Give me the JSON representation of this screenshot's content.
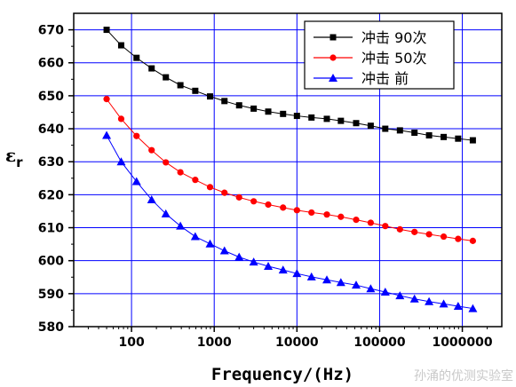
{
  "chart_data": {
    "type": "line",
    "xlabel": "Frequency/(Hz)",
    "ylabel": "ε",
    "ylabel_sub": "r",
    "x_scale": "log",
    "xlim": [
      20,
      3000000
    ],
    "ylim": [
      580,
      675
    ],
    "x_ticks": [
      100,
      1000,
      10000,
      100000,
      1000000
    ],
    "x_tick_labels": [
      "100",
      "1000",
      "10000",
      "100000",
      "1000000"
    ],
    "y_ticks": [
      580,
      590,
      600,
      610,
      620,
      630,
      640,
      650,
      660,
      670
    ],
    "y_tick_labels": [
      "580",
      "590",
      "600",
      "610",
      "620",
      "630",
      "640",
      "650",
      "660",
      "670"
    ],
    "grid": true,
    "legend_position": "top-right",
    "x": [
      50,
      75,
      115,
      175,
      260,
      390,
      590,
      890,
      1330,
      2000,
      3000,
      4500,
      6800,
      10000,
      15000,
      23000,
      34000,
      52000,
      78000,
      117000,
      176000,
      264000,
      396000,
      595000,
      890000,
      1340000
    ],
    "series": [
      {
        "name": "冲击 90次",
        "color": "#000000",
        "marker": "square",
        "values": [
          670,
          665.3,
          661.5,
          658.3,
          655.6,
          653.2,
          651.5,
          649.8,
          648.4,
          647.1,
          646.1,
          645.2,
          644.5,
          643.9,
          643.4,
          643.0,
          642.4,
          641.7,
          640.9,
          640.0,
          639.5,
          638.8,
          638.0,
          637.5,
          637.0,
          636.5
        ]
      },
      {
        "name": "冲击 50次",
        "color": "#ff0000",
        "marker": "circle",
        "values": [
          649,
          643,
          637.8,
          633.5,
          629.8,
          626.8,
          624.5,
          622.3,
          620.6,
          619.2,
          618.0,
          617.0,
          616.1,
          615.3,
          614.6,
          614.0,
          613.3,
          612.4,
          611.5,
          610.5,
          609.5,
          608.7,
          608.0,
          607.3,
          606.6,
          606.0
        ]
      },
      {
        "name": "冲击 前",
        "color": "#0000ff",
        "marker": "triangle",
        "values": [
          638,
          630,
          624,
          618.5,
          614.2,
          610.5,
          607.3,
          605.1,
          603.0,
          601.1,
          599.6,
          598.3,
          597.2,
          596.1,
          595.1,
          594.2,
          593.4,
          592.6,
          591.5,
          590.5,
          589.4,
          588.4,
          587.6,
          586.9,
          586.2,
          585.5
        ]
      }
    ]
  },
  "watermark": "孙涌的优测实验室"
}
